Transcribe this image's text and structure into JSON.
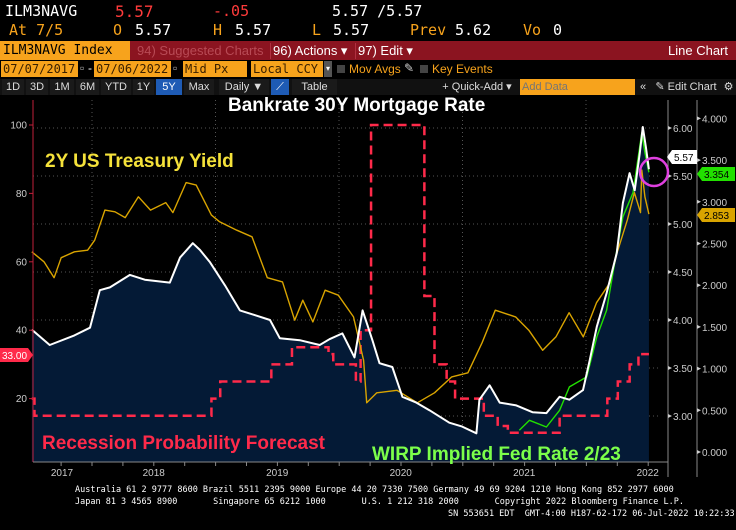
{
  "header": {
    "ticker": "ILM3NAVG",
    "last": "5.57",
    "change": "-.05",
    "bid_ask": "5.57 /5.57",
    "at": "At 7/5",
    "open_label": "O",
    "open": "5.57",
    "high_label": "H",
    "high": "5.57",
    "low_label": "L",
    "low": "5.57",
    "prev_label": "Prev",
    "prev": "5.62",
    "vol_label": "Vo",
    "vol": "0"
  },
  "toolbar": {
    "index": "ILM3NAVG Index",
    "suggested": "94) Suggested Charts",
    "actions": "96) Actions ▾",
    "edit": "97) Edit ▾",
    "chart_type": "Line Chart",
    "start_date": "07/07/2017",
    "end_date": "07/06/2022",
    "price_field": "Mid Px",
    "currency": "Local CCY",
    "mov_avgs": "Mov Avgs",
    "key_events": "Key Events",
    "ranges": [
      "1D",
      "3D",
      "1M",
      "6M",
      "YTD",
      "1Y",
      "5Y",
      "Max"
    ],
    "selected_range": "5Y",
    "frequency": "Daily ▼",
    "table": "Table",
    "quick_add": "+ Quick-Add ▾",
    "add_data_placeholder": "Add Data",
    "edit_chart": "Edit Chart",
    "collapse": "«"
  },
  "colors": {
    "mortgage": "#ffffff",
    "fill": "#041a36",
    "treasury": "#d9a400",
    "wirp": "#22e000",
    "recession": "#ff2a4a",
    "highlight": "#e040e0",
    "orange": "#f7a31c",
    "bar": "#8b1420"
  },
  "chart_data": {
    "type": "line",
    "title": "Bankrate 30Y Mortgage Rate",
    "annotations": [
      "2Y US Treasury Yield",
      "Recession Probability Forecast",
      "WIRP Implied Fed Rate 2/23"
    ],
    "x_ticks": [
      "2017",
      "2018",
      "2019",
      "2020",
      "2021",
      "2022"
    ],
    "xlim": [
      "2017-07-07",
      "2022-07-06"
    ],
    "grid": true,
    "axes": {
      "left": {
        "ylim": [
          0,
          105
        ],
        "ticks": [
          "20",
          "40",
          "60",
          "80",
          "100"
        ]
      },
      "mortgage": {
        "ylim": [
          2.6,
          6.2
        ],
        "ticks": [
          "3.00",
          "3.50",
          "4.00",
          "4.50",
          "5.00",
          "5.50",
          "6.00"
        ]
      },
      "right": {
        "ylim": [
          0,
          4.1
        ],
        "ticks": [
          "0.000",
          "0.500",
          "1.000",
          "1.500",
          "2.000",
          "2.500",
          "3.000",
          "3.500",
          "4.000"
        ]
      }
    },
    "last_labels": {
      "mortgage": "5.57",
      "wirp": "3.354",
      "treasury": "2.853",
      "recession": "33.00"
    },
    "series": [
      {
        "key": "mortgage",
        "axis": "mortgage",
        "style": "area",
        "points": [
          [
            "2017-07-07",
            3.9
          ],
          [
            "2017-08-29",
            3.74
          ],
          [
            "2017-11-10",
            3.84
          ],
          [
            "2017-12-26",
            3.92
          ],
          [
            "2018-01-24",
            4.31
          ],
          [
            "2018-02-23",
            4.34
          ],
          [
            "2018-04-23",
            4.47
          ],
          [
            "2018-06-06",
            4.42
          ],
          [
            "2018-08-19",
            4.39
          ],
          [
            "2018-09-18",
            4.65
          ],
          [
            "2018-10-26",
            4.8
          ],
          [
            "2018-11-16",
            4.73
          ],
          [
            "2018-12-16",
            4.6
          ],
          [
            "2019-01-29",
            4.36
          ],
          [
            "2019-03-14",
            4.1
          ],
          [
            "2019-04-28",
            4.05
          ],
          [
            "2019-06-11",
            4.0
          ],
          [
            "2019-07-10",
            3.81
          ],
          [
            "2019-09-07",
            3.79
          ],
          [
            "2019-11-05",
            3.74
          ],
          [
            "2019-12-04",
            3.8
          ],
          [
            "2020-01-11",
            3.86
          ],
          [
            "2020-02-16",
            3.61
          ],
          [
            "2020-03-11",
            4.1
          ],
          [
            "2020-04-09",
            3.79
          ],
          [
            "2020-04-30",
            3.55
          ],
          [
            "2020-06-07",
            3.51
          ],
          [
            "2020-07-07",
            3.2
          ],
          [
            "2020-08-17",
            3.14
          ],
          [
            "2020-09-25",
            3.06
          ],
          [
            "2020-11-23",
            2.93
          ],
          [
            "2020-12-31",
            2.89
          ],
          [
            "2021-02-11",
            2.82
          ],
          [
            "2021-02-20",
            3.17
          ],
          [
            "2021-03-22",
            3.32
          ],
          [
            "2021-04-21",
            3.14
          ],
          [
            "2021-06-09",
            3.11
          ],
          [
            "2021-07-27",
            3.04
          ],
          [
            "2021-09-06",
            3.03
          ],
          [
            "2021-10-15",
            3.2
          ],
          [
            "2021-11-13",
            3.17
          ],
          [
            "2021-12-23",
            3.27
          ],
          [
            "2022-01-12",
            3.58
          ],
          [
            "2022-02-02",
            3.93
          ],
          [
            "2022-03-03",
            4.28
          ],
          [
            "2022-04-02",
            4.7
          ],
          [
            "2022-04-20",
            5.22
          ],
          [
            "2022-05-10",
            5.53
          ],
          [
            "2022-05-25",
            5.35
          ],
          [
            "2022-06-09",
            5.74
          ],
          [
            "2022-06-18",
            6.01
          ],
          [
            "2022-06-27",
            5.8
          ],
          [
            "2022-07-06",
            5.57
          ]
        ]
      },
      {
        "key": "treasury",
        "axis": "right",
        "style": "line",
        "points": [
          [
            "2017-07-07",
            2.4
          ],
          [
            "2017-08-12",
            2.28
          ],
          [
            "2017-09-11",
            2.09
          ],
          [
            "2017-10-02",
            2.33
          ],
          [
            "2017-11-10",
            2.4
          ],
          [
            "2017-12-19",
            2.42
          ],
          [
            "2018-01-09",
            2.54
          ],
          [
            "2018-02-08",
            2.9
          ],
          [
            "2018-03-10",
            2.88
          ],
          [
            "2018-04-09",
            2.81
          ],
          [
            "2018-05-18",
            3.06
          ],
          [
            "2018-06-23",
            2.9
          ],
          [
            "2018-08-07",
            2.99
          ],
          [
            "2018-08-28",
            2.87
          ],
          [
            "2018-10-06",
            3.23
          ],
          [
            "2018-11-05",
            3.2
          ],
          [
            "2018-12-20",
            2.84
          ],
          [
            "2019-01-13",
            2.76
          ],
          [
            "2019-03-05",
            2.66
          ],
          [
            "2019-04-19",
            2.58
          ],
          [
            "2019-06-03",
            2.09
          ],
          [
            "2019-07-18",
            2.04
          ],
          [
            "2019-08-23",
            1.58
          ],
          [
            "2019-09-16",
            1.82
          ],
          [
            "2019-10-16",
            1.56
          ],
          [
            "2019-11-21",
            1.94
          ],
          [
            "2019-12-30",
            1.88
          ],
          [
            "2020-02-13",
            1.62
          ],
          [
            "2020-03-14",
            1.1
          ],
          [
            "2020-03-23",
            0.59
          ],
          [
            "2020-04-22",
            0.71
          ],
          [
            "2020-06-21",
            0.74
          ],
          [
            "2020-08-20",
            0.59
          ],
          [
            "2020-10-10",
            0.71
          ],
          [
            "2020-11-30",
            0.9
          ],
          [
            "2021-01-17",
            0.95
          ],
          [
            "2021-02-28",
            1.31
          ],
          [
            "2021-04-08",
            1.7
          ],
          [
            "2021-06-07",
            1.62
          ],
          [
            "2021-07-16",
            1.46
          ],
          [
            "2021-08-26",
            1.22
          ],
          [
            "2021-10-04",
            1.38
          ],
          [
            "2021-11-12",
            1.67
          ],
          [
            "2021-12-24",
            1.38
          ],
          [
            "2022-02-01",
            1.79
          ],
          [
            "2022-03-13",
            2.03
          ],
          [
            "2022-04-03",
            2.39
          ],
          [
            "2022-05-03",
            2.78
          ],
          [
            "2022-05-24",
            3.11
          ],
          [
            "2022-06-11",
            2.87
          ],
          [
            "2022-06-15",
            3.38
          ],
          [
            "2022-06-24",
            3.06
          ],
          [
            "2022-07-06",
            2.853
          ]
        ]
      },
      {
        "key": "wirp",
        "axis": "right",
        "style": "line",
        "points": [
          [
            "2021-06-18",
            0.26
          ],
          [
            "2021-07-18",
            0.38
          ],
          [
            "2021-09-06",
            0.3
          ],
          [
            "2021-10-15",
            0.5
          ],
          [
            "2021-11-13",
            0.78
          ],
          [
            "2022-01-03",
            0.9
          ],
          [
            "2022-02-02",
            1.38
          ],
          [
            "2022-03-03",
            1.7
          ],
          [
            "2022-04-02",
            2.42
          ],
          [
            "2022-04-20",
            2.82
          ],
          [
            "2022-05-20",
            3.11
          ],
          [
            "2022-06-15",
            3.83
          ],
          [
            "2022-06-24",
            3.59
          ],
          [
            "2022-07-06",
            3.354
          ]
        ]
      },
      {
        "key": "recession",
        "axis": "left",
        "style": "step-dashed",
        "points": [
          [
            "2017-07-07",
            20
          ],
          [
            "2017-07-15",
            15
          ],
          [
            "2018-12-20",
            20
          ],
          [
            "2019-01-15",
            25
          ],
          [
            "2019-06-15",
            30
          ],
          [
            "2019-08-15",
            35
          ],
          [
            "2019-12-01",
            33
          ],
          [
            "2019-12-15",
            30
          ],
          [
            "2020-02-20",
            25
          ],
          [
            "2020-03-05",
            40
          ],
          [
            "2020-04-05",
            100
          ],
          [
            "2020-09-10",
            50
          ],
          [
            "2020-10-10",
            30
          ],
          [
            "2020-11-15",
            25
          ],
          [
            "2020-12-10",
            20
          ],
          [
            "2021-03-05",
            15
          ],
          [
            "2021-04-15",
            12
          ],
          [
            "2021-05-15",
            10
          ],
          [
            "2021-10-15",
            15
          ],
          [
            "2022-03-05",
            20
          ],
          [
            "2022-04-05",
            25
          ],
          [
            "2022-05-10",
            30
          ],
          [
            "2022-06-05",
            33
          ],
          [
            "2022-07-06",
            33
          ]
        ]
      }
    ]
  },
  "footer": {
    "line1": "Australia 61 2 9777 8600 Brazil 5511 2395 9000 Europe 44 20 7330 7500 Germany 49 69 9204 1210 Hong Kong 852 2977 6000",
    "line2": "Japan 81 3 4565 8900       Singapore 65 6212 1000       U.S. 1 212 318 2000       Copyright 2022 Bloomberg Finance L.P.",
    "line3": "SN 553651 EDT  GMT-4:00 H187-62-172 06-Jul-2022 10:22:33"
  }
}
